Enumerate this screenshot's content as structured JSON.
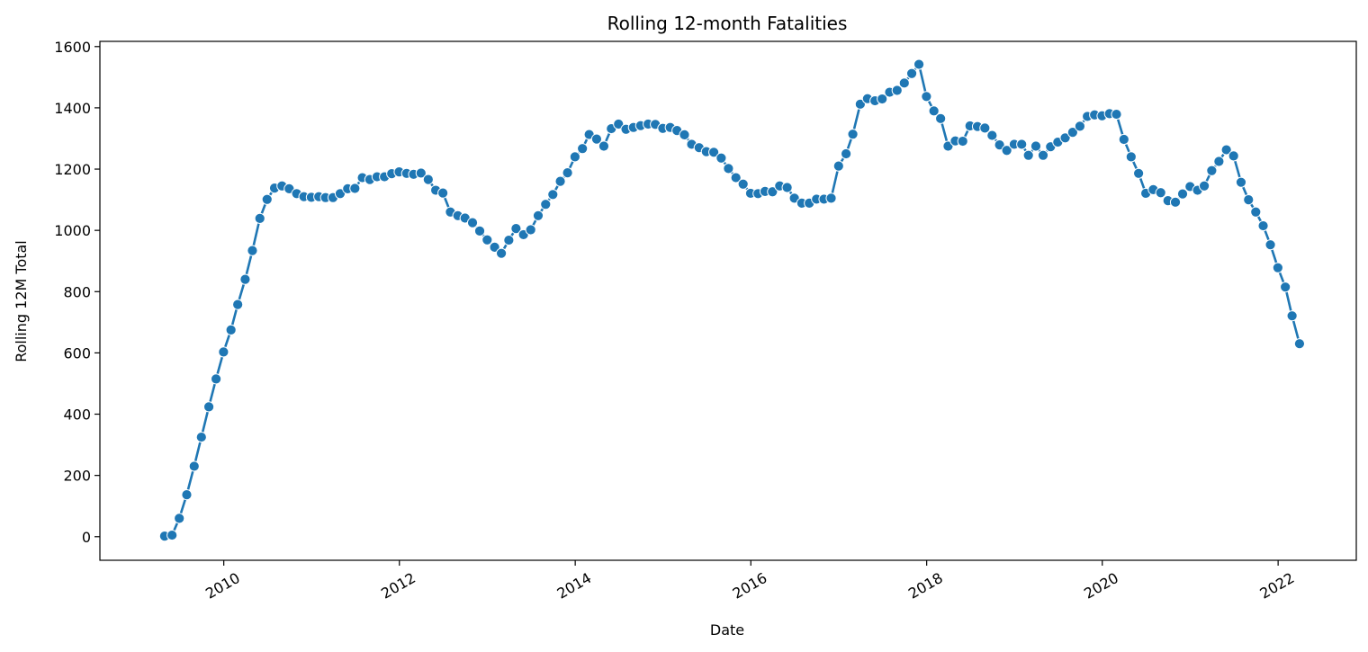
{
  "chart_data": {
    "type": "line",
    "title": "Rolling 12-month Fatalities",
    "xlabel": "Date",
    "ylabel": "Rolling 12M Total",
    "x_axis": "date",
    "xlim": [
      "2008-08-04",
      "2022-11-22"
    ],
    "ylim": [
      -77,
      1617
    ],
    "x_ticks": [
      "2010-01-01",
      "2012-01-01",
      "2014-01-01",
      "2016-01-01",
      "2018-01-01",
      "2020-01-01",
      "2022-01-01"
    ],
    "x_tick_labels": [
      "2010",
      "2012",
      "2014",
      "2016",
      "2018",
      "2020",
      "2022"
    ],
    "y_ticks": [
      0,
      200,
      400,
      600,
      800,
      1000,
      1200,
      1400,
      1600
    ],
    "y_tick_labels": [
      "0",
      "200",
      "400",
      "600",
      "800",
      "1000",
      "1200",
      "1400",
      "1600"
    ],
    "grid": false,
    "marker": "circle",
    "series": [
      {
        "color": "#1f77b4",
        "x": [
          "2009-04-30",
          "2009-05-31",
          "2009-06-30",
          "2009-07-31",
          "2009-08-31",
          "2009-09-30",
          "2009-10-31",
          "2009-11-30",
          "2009-12-31",
          "2010-01-31",
          "2010-02-28",
          "2010-03-31",
          "2010-04-30",
          "2010-05-31",
          "2010-06-30",
          "2010-07-31",
          "2010-08-31",
          "2010-09-30",
          "2010-10-31",
          "2010-11-30",
          "2010-12-31",
          "2011-01-31",
          "2011-02-28",
          "2011-03-31",
          "2011-04-30",
          "2011-05-31",
          "2011-06-30",
          "2011-07-31",
          "2011-08-31",
          "2011-09-30",
          "2011-10-31",
          "2011-11-30",
          "2011-12-31",
          "2012-01-31",
          "2012-02-29",
          "2012-03-31",
          "2012-04-30",
          "2012-05-31",
          "2012-06-30",
          "2012-07-31",
          "2012-08-31",
          "2012-09-30",
          "2012-10-31",
          "2012-11-30",
          "2012-12-31",
          "2013-01-31",
          "2013-02-28",
          "2013-03-31",
          "2013-04-30",
          "2013-05-31",
          "2013-06-30",
          "2013-07-31",
          "2013-08-31",
          "2013-09-30",
          "2013-10-31",
          "2013-11-30",
          "2013-12-31",
          "2014-01-31",
          "2014-02-28",
          "2014-03-31",
          "2014-04-30",
          "2014-05-31",
          "2014-06-30",
          "2014-07-31",
          "2014-08-31",
          "2014-09-30",
          "2014-10-31",
          "2014-11-30",
          "2014-12-31",
          "2015-01-31",
          "2015-02-28",
          "2015-03-31",
          "2015-04-30",
          "2015-05-31",
          "2015-06-30",
          "2015-07-31",
          "2015-08-31",
          "2015-09-30",
          "2015-10-31",
          "2015-11-30",
          "2015-12-31",
          "2016-01-31",
          "2016-02-29",
          "2016-03-31",
          "2016-04-30",
          "2016-05-31",
          "2016-06-30",
          "2016-07-31",
          "2016-08-31",
          "2016-09-30",
          "2016-10-31",
          "2016-11-30",
          "2016-12-31",
          "2017-01-31",
          "2017-02-28",
          "2017-03-31",
          "2017-04-30",
          "2017-05-31",
          "2017-06-30",
          "2017-07-31",
          "2017-08-31",
          "2017-09-30",
          "2017-10-31",
          "2017-11-30",
          "2017-12-31",
          "2018-01-31",
          "2018-02-28",
          "2018-03-31",
          "2018-04-30",
          "2018-05-31",
          "2018-06-30",
          "2018-07-31",
          "2018-08-31",
          "2018-09-30",
          "2018-10-31",
          "2018-11-30",
          "2018-12-31",
          "2019-01-31",
          "2019-02-28",
          "2019-03-31",
          "2019-04-30",
          "2019-05-31",
          "2019-06-30",
          "2019-07-31",
          "2019-08-31",
          "2019-09-30",
          "2019-10-31",
          "2019-11-30",
          "2019-12-31",
          "2020-01-31",
          "2020-02-29",
          "2020-03-31",
          "2020-04-30",
          "2020-05-31",
          "2020-06-30",
          "2020-07-31",
          "2020-08-31",
          "2020-09-30",
          "2020-10-31",
          "2020-11-30",
          "2020-12-31",
          "2021-01-31",
          "2021-02-28",
          "2021-03-31",
          "2021-04-30",
          "2021-05-31",
          "2021-06-30",
          "2021-07-31",
          "2021-08-31",
          "2021-09-30",
          "2021-10-31",
          "2021-11-30",
          "2021-12-31",
          "2022-01-31",
          "2022-02-28",
          "2022-03-31"
        ],
        "y": [
          2,
          5,
          60,
          137,
          230,
          325,
          424,
          515,
          603,
          675,
          758,
          840,
          934,
          1039,
          1101,
          1138,
          1145,
          1136,
          1120,
          1110,
          1108,
          1110,
          1107,
          1107,
          1120,
          1136,
          1137,
          1172,
          1166,
          1175,
          1175,
          1185,
          1191,
          1186,
          1183,
          1187,
          1166,
          1131,
          1122,
          1060,
          1048,
          1040,
          1025,
          998,
          969,
          945,
          925,
          968,
          1006,
          986,
          1002,
          1048,
          1085,
          1117,
          1160,
          1188,
          1240,
          1267,
          1313,
          1298,
          1275,
          1332,
          1347,
          1330,
          1336,
          1342,
          1347,
          1346,
          1333,
          1336,
          1326,
          1312,
          1281,
          1270,
          1257,
          1255,
          1236,
          1202,
          1172,
          1151,
          1121,
          1120,
          1127,
          1126,
          1145,
          1140,
          1105,
          1089,
          1089,
          1102,
          1102,
          1105,
          1210,
          1250,
          1314,
          1412,
          1430,
          1423,
          1429,
          1451,
          1457,
          1481,
          1512,
          1542,
          1437,
          1390,
          1365,
          1275,
          1292,
          1291,
          1341,
          1339,
          1334,
          1310,
          1279,
          1261,
          1281,
          1281,
          1245,
          1275,
          1245,
          1273,
          1288,
          1302,
          1320,
          1340,
          1372,
          1377,
          1374,
          1381,
          1379,
          1297,
          1240,
          1186,
          1121,
          1133,
          1123,
          1097,
          1092,
          1119,
          1143,
          1131,
          1145,
          1195,
          1225,
          1263,
          1243,
          1157,
          1100,
          1060,
          1015,
          953,
          878,
          815,
          721,
          630
        ]
      }
    ]
  }
}
